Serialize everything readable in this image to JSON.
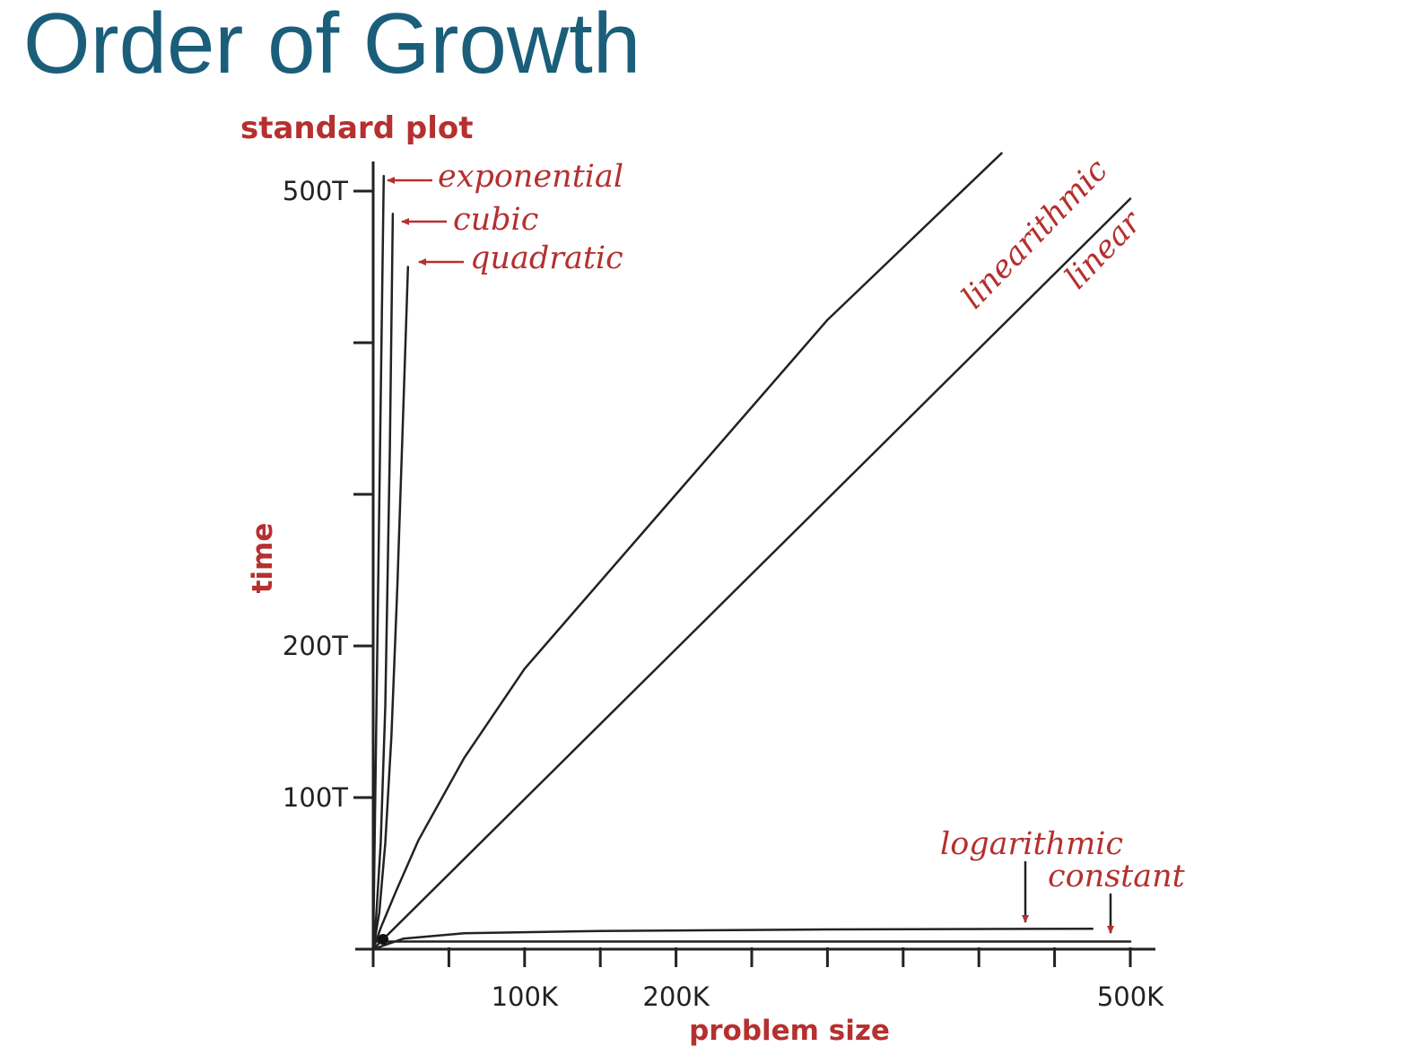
{
  "slide": {
    "title": "Order of Growth"
  },
  "colors": {
    "title": "#1a5e7a",
    "accent": "#b5302f",
    "curve": "#222222"
  },
  "chart_data": {
    "type": "line",
    "title": "standard plot",
    "xlabel": "problem size",
    "ylabel": "time",
    "xlim": [
      0,
      500000
    ],
    "ylim": [
      0,
      500
    ],
    "x_ticks": [
      {
        "value": 0,
        "label": ""
      },
      {
        "value": 50000,
        "label": ""
      },
      {
        "value": 100000,
        "label": "100K"
      },
      {
        "value": 150000,
        "label": ""
      },
      {
        "value": 200000,
        "label": "200K"
      },
      {
        "value": 250000,
        "label": ""
      },
      {
        "value": 300000,
        "label": ""
      },
      {
        "value": 350000,
        "label": ""
      },
      {
        "value": 400000,
        "label": ""
      },
      {
        "value": 450000,
        "label": ""
      },
      {
        "value": 500000,
        "label": "500K"
      }
    ],
    "y_ticks": [
      {
        "value": 100,
        "label": "100T"
      },
      {
        "value": 200,
        "label": "200T"
      },
      {
        "value": 300,
        "label": ""
      },
      {
        "value": 400,
        "label": ""
      },
      {
        "value": 500,
        "label": "500T"
      }
    ],
    "series": [
      {
        "name": "exponential",
        "points": [
          [
            0,
            0
          ],
          [
            7000,
            510
          ]
        ]
      },
      {
        "name": "cubic",
        "points": [
          [
            0,
            0
          ],
          [
            2000,
            22
          ],
          [
            5000,
            70
          ],
          [
            8000,
            160
          ],
          [
            11000,
            330
          ],
          [
            13000,
            485
          ]
        ]
      },
      {
        "name": "quadratic",
        "points": [
          [
            0,
            0
          ],
          [
            4000,
            24
          ],
          [
            8000,
            70
          ],
          [
            12000,
            140
          ],
          [
            16000,
            240
          ],
          [
            20000,
            360
          ],
          [
            23000,
            450
          ]
        ]
      },
      {
        "name": "linearithmic",
        "points": [
          [
            0,
            0
          ],
          [
            5000,
            14
          ],
          [
            15000,
            38
          ],
          [
            30000,
            72
          ],
          [
            60000,
            126
          ],
          [
            100000,
            185
          ],
          [
            200000,
            300
          ],
          [
            300000,
            415
          ],
          [
            415000,
            525
          ]
        ]
      },
      {
        "name": "linear",
        "points": [
          [
            0,
            0
          ],
          [
            500000,
            495
          ]
        ]
      },
      {
        "name": "logarithmic",
        "points": [
          [
            0,
            0
          ],
          [
            20000,
            7
          ],
          [
            60000,
            10.5
          ],
          [
            150000,
            12
          ],
          [
            300000,
            13
          ],
          [
            475000,
            13.5
          ]
        ]
      },
      {
        "name": "constant",
        "points": [
          [
            0,
            5
          ],
          [
            500000,
            5
          ]
        ]
      }
    ],
    "annotations": [
      "exponential",
      "cubic",
      "quadratic",
      "linearithmic",
      "linear",
      "logarithmic",
      "constant"
    ]
  }
}
